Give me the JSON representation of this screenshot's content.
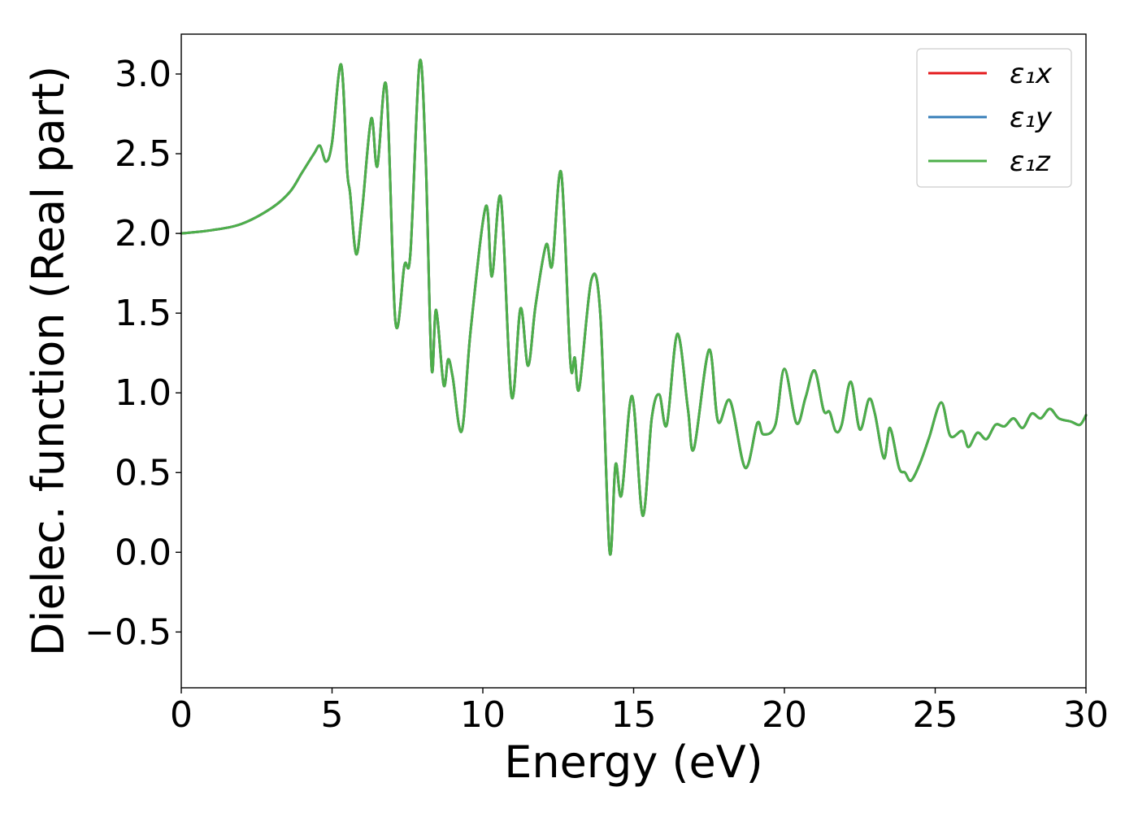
{
  "chart_data": {
    "type": "line",
    "xlabel": "Energy (eV)",
    "ylabel": "Dielec. function (Real part)",
    "xlim": [
      0,
      30
    ],
    "ylim": [
      -0.85,
      3.25
    ],
    "xticks": [
      "0",
      "5",
      "10",
      "15",
      "20",
      "25",
      "30"
    ],
    "yticks": [
      "−0.5",
      "0.0",
      "0.5",
      "1.0",
      "1.5",
      "2.0",
      "2.5",
      "3.0"
    ],
    "legend": {
      "position": "top-right"
    },
    "series": [
      {
        "name": "ε₁x",
        "color": "#e41a1c",
        "x": [
          0,
          1,
          2,
          3,
          3.6,
          4.0,
          4.4,
          4.6,
          4.8,
          5.0,
          5.3,
          5.5,
          5.6,
          5.8,
          6.0,
          6.3,
          6.5,
          6.8,
          7.1,
          7.4,
          7.6,
          7.9,
          8.1,
          8.3,
          8.45,
          8.7,
          8.85,
          9.0,
          9.3,
          9.6,
          10.1,
          10.3,
          10.6,
          10.95,
          11.25,
          11.5,
          11.75,
          12.1,
          12.3,
          12.6,
          12.9,
          13.05,
          13.2,
          13.6,
          13.9,
          14.2,
          14.4,
          14.6,
          14.95,
          15.3,
          15.6,
          15.85,
          16.1,
          16.45,
          16.8,
          17.0,
          17.5,
          17.8,
          18.2,
          18.7,
          19.1,
          19.3,
          19.7,
          20.0,
          20.4,
          20.7,
          21.0,
          21.3,
          21.5,
          21.7,
          21.9,
          22.2,
          22.5,
          22.8,
          23.0,
          23.3,
          23.5,
          23.8,
          24.0,
          24.2,
          24.5,
          24.8,
          25.2,
          25.5,
          25.9,
          26.1,
          26.4,
          26.7,
          27.0,
          27.3,
          27.6,
          27.9,
          28.2,
          28.5,
          28.8,
          29.1,
          29.5,
          29.8,
          30.0
        ],
        "y": [
          2.0,
          2.02,
          2.06,
          2.16,
          2.26,
          2.38,
          2.5,
          2.55,
          2.45,
          2.57,
          3.06,
          2.4,
          2.25,
          1.87,
          2.15,
          2.72,
          2.42,
          2.92,
          1.45,
          1.8,
          1.88,
          3.07,
          2.5,
          1.16,
          1.52,
          1.05,
          1.21,
          1.1,
          0.76,
          1.4,
          2.17,
          1.73,
          2.22,
          0.98,
          1.53,
          1.17,
          1.55,
          1.93,
          1.8,
          2.38,
          1.2,
          1.22,
          1.03,
          1.71,
          1.48,
          0.01,
          0.55,
          0.36,
          0.98,
          0.23,
          0.84,
          0.99,
          0.8,
          1.37,
          0.9,
          0.65,
          1.27,
          0.82,
          0.95,
          0.53,
          0.81,
          0.74,
          0.8,
          1.15,
          0.81,
          0.97,
          1.14,
          0.89,
          0.88,
          0.76,
          0.8,
          1.07,
          0.77,
          0.96,
          0.87,
          0.59,
          0.78,
          0.53,
          0.5,
          0.45,
          0.56,
          0.72,
          0.94,
          0.73,
          0.76,
          0.66,
          0.75,
          0.71,
          0.8,
          0.79,
          0.84,
          0.78,
          0.87,
          0.84,
          0.9,
          0.84,
          0.82,
          0.8,
          0.86
        ]
      },
      {
        "name": "ε₁y",
        "color": "#377eb8",
        "x": [
          0,
          1,
          2,
          3,
          3.6,
          4.0,
          4.4,
          4.6,
          4.8,
          5.0,
          5.3,
          5.5,
          5.6,
          5.8,
          6.0,
          6.3,
          6.5,
          6.8,
          7.1,
          7.4,
          7.6,
          7.9,
          8.1,
          8.3,
          8.45,
          8.7,
          8.85,
          9.0,
          9.3,
          9.6,
          10.1,
          10.3,
          10.6,
          10.95,
          11.25,
          11.5,
          11.75,
          12.1,
          12.3,
          12.6,
          12.9,
          13.05,
          13.2,
          13.6,
          13.9,
          14.2,
          14.4,
          14.6,
          14.95,
          15.3,
          15.6,
          15.85,
          16.1,
          16.45,
          16.8,
          17.0,
          17.5,
          17.8,
          18.2,
          18.7,
          19.1,
          19.3,
          19.7,
          20.0,
          20.4,
          20.7,
          21.0,
          21.3,
          21.5,
          21.7,
          21.9,
          22.2,
          22.5,
          22.8,
          23.0,
          23.3,
          23.5,
          23.8,
          24.0,
          24.2,
          24.5,
          24.8,
          25.2,
          25.5,
          25.9,
          26.1,
          26.4,
          26.7,
          27.0,
          27.3,
          27.6,
          27.9,
          28.2,
          28.5,
          28.8,
          29.1,
          29.5,
          29.8,
          30.0
        ],
        "y": [
          2.0,
          2.02,
          2.06,
          2.16,
          2.26,
          2.38,
          2.5,
          2.55,
          2.45,
          2.57,
          3.06,
          2.4,
          2.25,
          1.87,
          2.15,
          2.72,
          2.42,
          2.92,
          1.45,
          1.8,
          1.88,
          3.07,
          2.5,
          1.16,
          1.52,
          1.05,
          1.21,
          1.1,
          0.76,
          1.4,
          2.17,
          1.73,
          2.22,
          0.98,
          1.53,
          1.17,
          1.55,
          1.93,
          1.8,
          2.38,
          1.2,
          1.22,
          1.03,
          1.71,
          1.48,
          0.01,
          0.55,
          0.36,
          0.98,
          0.23,
          0.84,
          0.99,
          0.8,
          1.37,
          0.9,
          0.65,
          1.27,
          0.82,
          0.95,
          0.53,
          0.81,
          0.74,
          0.8,
          1.15,
          0.81,
          0.97,
          1.14,
          0.89,
          0.88,
          0.76,
          0.8,
          1.07,
          0.77,
          0.96,
          0.87,
          0.59,
          0.78,
          0.53,
          0.5,
          0.45,
          0.56,
          0.72,
          0.94,
          0.73,
          0.76,
          0.66,
          0.75,
          0.71,
          0.8,
          0.79,
          0.84,
          0.78,
          0.87,
          0.84,
          0.9,
          0.84,
          0.82,
          0.8,
          0.86
        ]
      },
      {
        "name": "ε₁z",
        "color": "#4daf4a",
        "x": [
          0,
          1,
          2,
          3,
          3.6,
          4.0,
          4.4,
          4.6,
          4.8,
          5.0,
          5.3,
          5.5,
          5.6,
          5.8,
          6.0,
          6.3,
          6.5,
          6.8,
          7.1,
          7.4,
          7.6,
          7.9,
          8.1,
          8.3,
          8.45,
          8.7,
          8.85,
          9.0,
          9.3,
          9.6,
          10.1,
          10.3,
          10.6,
          10.95,
          11.25,
          11.5,
          11.75,
          12.1,
          12.3,
          12.6,
          12.9,
          13.05,
          13.2,
          13.6,
          13.9,
          14.2,
          14.4,
          14.6,
          14.95,
          15.3,
          15.6,
          15.85,
          16.1,
          16.45,
          16.8,
          17.0,
          17.5,
          17.8,
          18.2,
          18.7,
          19.1,
          19.3,
          19.7,
          20.0,
          20.4,
          20.7,
          21.0,
          21.3,
          21.5,
          21.7,
          21.9,
          22.2,
          22.5,
          22.8,
          23.0,
          23.3,
          23.5,
          23.8,
          24.0,
          24.2,
          24.5,
          24.8,
          25.2,
          25.5,
          25.9,
          26.1,
          26.4,
          26.7,
          27.0,
          27.3,
          27.6,
          27.9,
          28.2,
          28.5,
          28.8,
          29.1,
          29.5,
          29.8,
          30.0
        ],
        "y": [
          2.0,
          2.02,
          2.06,
          2.16,
          2.26,
          2.38,
          2.5,
          2.55,
          2.45,
          2.57,
          3.06,
          2.4,
          2.25,
          1.87,
          2.15,
          2.72,
          2.42,
          2.92,
          1.45,
          1.8,
          1.88,
          3.07,
          2.5,
          1.16,
          1.52,
          1.05,
          1.21,
          1.1,
          0.76,
          1.4,
          2.17,
          1.73,
          2.22,
          0.98,
          1.53,
          1.17,
          1.55,
          1.93,
          1.8,
          2.38,
          1.2,
          1.22,
          1.03,
          1.71,
          1.48,
          0.01,
          0.55,
          0.36,
          0.98,
          0.23,
          0.84,
          0.99,
          0.8,
          1.37,
          0.9,
          0.65,
          1.27,
          0.82,
          0.95,
          0.53,
          0.81,
          0.74,
          0.8,
          1.15,
          0.81,
          0.97,
          1.14,
          0.89,
          0.88,
          0.76,
          0.8,
          1.07,
          0.77,
          0.96,
          0.87,
          0.59,
          0.78,
          0.53,
          0.5,
          0.45,
          0.56,
          0.72,
          0.94,
          0.73,
          0.76,
          0.66,
          0.75,
          0.71,
          0.8,
          0.79,
          0.84,
          0.78,
          0.87,
          0.84,
          0.9,
          0.84,
          0.82,
          0.8,
          0.86
        ]
      }
    ]
  }
}
